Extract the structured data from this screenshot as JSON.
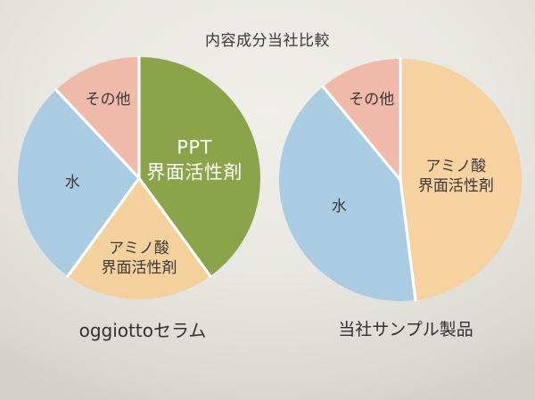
{
  "title": "内容成分当社比較",
  "chart_data": [
    {
      "type": "pie",
      "title": "oggiottoセラム",
      "categories": [
        "PPT\n界面活性剤",
        "アミノ酸\n界面活性剤",
        "水",
        "その他"
      ],
      "values": [
        40,
        20,
        28,
        12
      ],
      "colors": [
        "#8ca449",
        "#f4d09d",
        "#a9cce2",
        "#efbaa9"
      ]
    },
    {
      "type": "pie",
      "title": "当社サンプル製品",
      "categories": [
        "アミノ酸\n界面活性剤",
        "水",
        "その他"
      ],
      "values": [
        48,
        41,
        11
      ],
      "colors": [
        "#f5d2a0",
        "#a9cce2",
        "#efbaa9"
      ]
    }
  ]
}
